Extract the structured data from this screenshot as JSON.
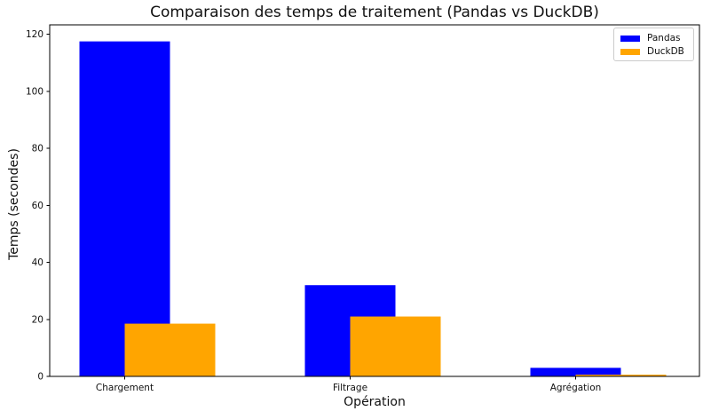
{
  "chart_data": {
    "type": "bar",
    "title": "Comparaison des temps de traitement (Pandas vs DuckDB)",
    "xlabel": "Opération",
    "ylabel": "Temps (secondes)",
    "categories": [
      "Chargement",
      "Filtrage",
      "Agrégation"
    ],
    "series": [
      {
        "name": "Pandas",
        "color": "#0000ff",
        "values": [
          117.5,
          32,
          3
        ]
      },
      {
        "name": "DuckDB",
        "color": "#ffa500",
        "values": [
          18.5,
          21,
          0.6
        ]
      }
    ],
    "y_ticks": [
      0,
      20,
      40,
      60,
      80,
      100,
      120
    ],
    "ylim": [
      0,
      123.3
    ],
    "grid": false,
    "legend_position": "upper right",
    "background": "#ffffff",
    "spine_color": "#000000"
  }
}
